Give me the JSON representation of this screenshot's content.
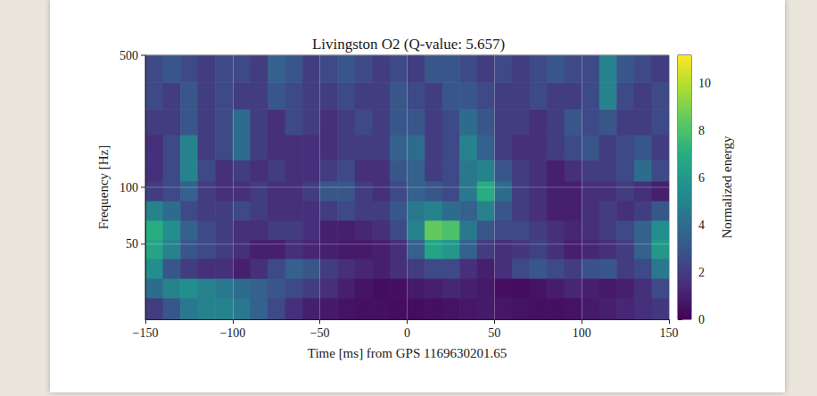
{
  "chart_data": {
    "type": "heatmap",
    "title": "Livingston O2 (Q-value: 5.657)",
    "x_label": "Time [ms] from GPS 1169630201.65",
    "y_label": "Frequency [Hz]",
    "log": "y",
    "grid": true,
    "xlim": [
      -150,
      150
    ],
    "xticks": [
      {
        "value": -150,
        "label": "−150"
      },
      {
        "value": -100,
        "label": "−100"
      },
      {
        "value": -50,
        "label": "−50"
      },
      0,
      50,
      100,
      150
    ],
    "ylim": [
      20,
      500
    ],
    "yticks": [
      50,
      100,
      500
    ],
    "x_edges": [
      -150,
      -140,
      -130,
      -120,
      -110,
      -100,
      -90,
      -80,
      -70,
      -60,
      -50,
      -40,
      -30,
      -20,
      -10,
      0,
      10,
      20,
      30,
      40,
      50,
      60,
      70,
      80,
      90,
      100,
      110,
      120,
      130,
      140,
      150
    ],
    "y_edges": [
      20,
      26,
      33,
      42,
      53,
      67,
      85,
      108,
      140,
      190,
      260,
      360,
      500
    ],
    "cells": [
      [
        2,
        3,
        4.5,
        5,
        5,
        4.5,
        3.5,
        2.5,
        1.5,
        1,
        0.8,
        0.6,
        0.5,
        0.5,
        0.4,
        0.4,
        0.5,
        0.6,
        0.7,
        0.8,
        0.7,
        0.6,
        0.5,
        0.5,
        0.6,
        0.8,
        1,
        1.2,
        1.5,
        1.8
      ],
      [
        4,
        5,
        5.5,
        5,
        4.5,
        4,
        3.5,
        3,
        2.5,
        2,
        1.5,
        1,
        0.6,
        0.4,
        0.5,
        0.8,
        1,
        1.2,
        1,
        0.8,
        0.5,
        0.4,
        0.6,
        0.9,
        1.2,
        1,
        0.8,
        1,
        1.5,
        2.5
      ],
      [
        5.5,
        3,
        2,
        1.5,
        1.5,
        1,
        1.5,
        2.5,
        3.5,
        3,
        2,
        1.5,
        1.2,
        1,
        1.5,
        2,
        2.5,
        2.5,
        1.5,
        1,
        1.5,
        2.5,
        3,
        2.5,
        2,
        2.8,
        3,
        2,
        2.5,
        4.5
      ],
      [
        6.5,
        5,
        3,
        2.5,
        2,
        1.5,
        1,
        1,
        1.5,
        1.2,
        1,
        0.8,
        0.8,
        1,
        1.5,
        3.5,
        6.5,
        6,
        3.5,
        2,
        1.5,
        1.8,
        2.2,
        1.5,
        1,
        1.2,
        1.5,
        2,
        3.5,
        6
      ],
      [
        7,
        5.5,
        3.5,
        2.5,
        2,
        1.5,
        1.5,
        2,
        2,
        1.5,
        1,
        1,
        1.2,
        1.5,
        2.5,
        5,
        8.5,
        8,
        4.5,
        3,
        2.5,
        2.5,
        2,
        1.5,
        1.2,
        1.5,
        2,
        2.5,
        3.5,
        5.5
      ],
      [
        5,
        4,
        2.5,
        2,
        2,
        2.5,
        2,
        1.5,
        1.5,
        1.5,
        2,
        2.5,
        2,
        2,
        3,
        4.5,
        5,
        4,
        3.5,
        5,
        3,
        2,
        1.5,
        1,
        1,
        1.5,
        2,
        1.5,
        2,
        3
      ],
      [
        2,
        2.5,
        3.5,
        2,
        1.5,
        1.5,
        2,
        1.5,
        1.5,
        2,
        3,
        3,
        2,
        1.5,
        2.5,
        3.5,
        3,
        2.5,
        4.5,
        7,
        4,
        2,
        1.5,
        1,
        1,
        1.5,
        1.5,
        2,
        1.5,
        1
      ],
      [
        1.5,
        2.5,
        5,
        2.5,
        1.5,
        2,
        1.5,
        2,
        1.5,
        1.5,
        2,
        2.5,
        1.5,
        1.5,
        3,
        3.5,
        2,
        2.5,
        4.5,
        5,
        3,
        2,
        1.5,
        1,
        1.5,
        2,
        2,
        2.5,
        4,
        2.5
      ],
      [
        1.5,
        2.5,
        5,
        2,
        2.5,
        4,
        2,
        1.5,
        1.5,
        1.5,
        1.5,
        2,
        2,
        2,
        3.5,
        4,
        2,
        2.5,
        5,
        3.5,
        2,
        1.5,
        1.5,
        2,
        2.5,
        3,
        2,
        2.5,
        3,
        2
      ],
      [
        2,
        2,
        3,
        2,
        2.5,
        4,
        2,
        1.5,
        2.5,
        2,
        1.5,
        2,
        2.5,
        2,
        3,
        3,
        2,
        2.5,
        4,
        3,
        2,
        2,
        1.5,
        2,
        3,
        2.5,
        3,
        2,
        2,
        2.5
      ],
      [
        2.5,
        2,
        3,
        2,
        2.5,
        2,
        2,
        3,
        2.5,
        2,
        2,
        2.5,
        2,
        2,
        3,
        2.5,
        2,
        3,
        3,
        2.5,
        2,
        2,
        2.5,
        2,
        2,
        2.5,
        5,
        2.5,
        2,
        2.5
      ],
      [
        2.5,
        3,
        2.5,
        2,
        2.5,
        2.5,
        2,
        3.5,
        3,
        2,
        2.5,
        3,
        2.5,
        2,
        2.5,
        2,
        3,
        3,
        2.5,
        2,
        2.5,
        2,
        2.5,
        3,
        2.5,
        2.5,
        5,
        3,
        2.5,
        2
      ]
    ],
    "colorbar": {
      "label": "Normalized energy",
      "range": [
        0,
        11.2
      ],
      "ticks": [
        0,
        2,
        4,
        6,
        8,
        10
      ]
    }
  }
}
